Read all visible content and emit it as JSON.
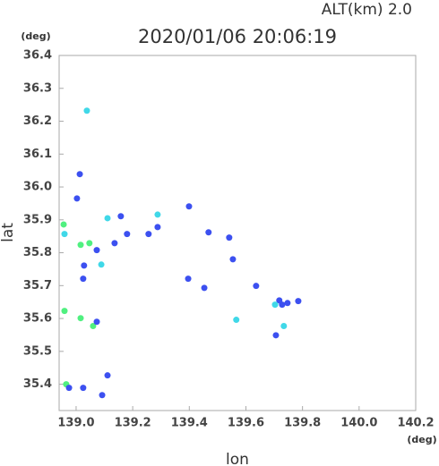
{
  "chart_data": {
    "type": "scatter",
    "title": "2020/01/06 20:06:19",
    "annotation": "ALT(km)  2.0",
    "xlabel": "lon",
    "ylabel": "lat",
    "xunit": "(deg)",
    "yunit": "(deg)",
    "xlim": [
      138.94,
      140.2
    ],
    "ylim": [
      35.32,
      36.4
    ],
    "xticks": [
      {
        "value": 139.0,
        "label": "139.0"
      },
      139.2,
      139.4,
      139.6,
      139.8,
      {
        "value": 140.0,
        "label": "140.0"
      },
      140.2
    ],
    "yticks": [
      35.4,
      35.5,
      35.6,
      35.7,
      35.8,
      35.9,
      {
        "value": 36.0,
        "label": "36.0"
      },
      36.1,
      36.2,
      36.3,
      36.4
    ],
    "x": [
      139.038,
      139.013,
      139.003,
      138.956,
      138.959,
      139.016,
      139.047,
      139.028,
      139.025,
      139.089,
      139.073,
      138.959,
      139.016,
      139.06,
      139.073,
      139.111,
      139.092,
      138.965,
      138.975,
      139.025,
      139.111,
      139.288,
      139.288,
      139.256,
      139.399,
      139.468,
      139.541,
      139.554,
      139.396,
      139.453,
      139.566,
      139.636,
      139.718,
      139.703,
      139.728,
      139.747,
      139.734,
      139.706,
      139.785,
      139.18,
      139.136,
      139.158
    ],
    "values": [
      36.232,
      36.039,
      35.965,
      35.886,
      35.857,
      35.824,
      35.829,
      35.761,
      35.721,
      35.764,
      35.808,
      35.623,
      35.601,
      35.577,
      35.59,
      35.427,
      35.367,
      35.4,
      35.389,
      35.389,
      35.905,
      35.916,
      35.878,
      35.857,
      35.941,
      35.862,
      35.846,
      35.78,
      35.721,
      35.693,
      35.596,
      35.699,
      35.655,
      35.642,
      35.642,
      35.647,
      35.577,
      35.549,
      35.653,
      35.857,
      35.829,
      35.911
    ],
    "colors": [
      "#40d8e8",
      "#3c50f0",
      "#3c50f0",
      "#50f080",
      "#40d8e8",
      "#50f080",
      "#50f080",
      "#3c50f0",
      "#3c50f0",
      "#40d8e8",
      "#3c50f0",
      "#50f080",
      "#50f080",
      "#50f080",
      "#3c50f0",
      "#3c50f0",
      "#3c50f0",
      "#50f080",
      "#3c50f0",
      "#3c50f0",
      "#40d8e8",
      "#40d8e8",
      "#3c50f0",
      "#3c50f0",
      "#3c50f0",
      "#3c50f0",
      "#3c50f0",
      "#3c50f0",
      "#3c50f0",
      "#3c50f0",
      "#40d8e8",
      "#3c50f0",
      "#3c50f0",
      "#40d8e8",
      "#3c50f0",
      "#3c50f0",
      "#40d8e8",
      "#3c50f0",
      "#3c50f0",
      "#3c50f0",
      "#3c50f0",
      "#3c50f0"
    ],
    "grid": false
  }
}
